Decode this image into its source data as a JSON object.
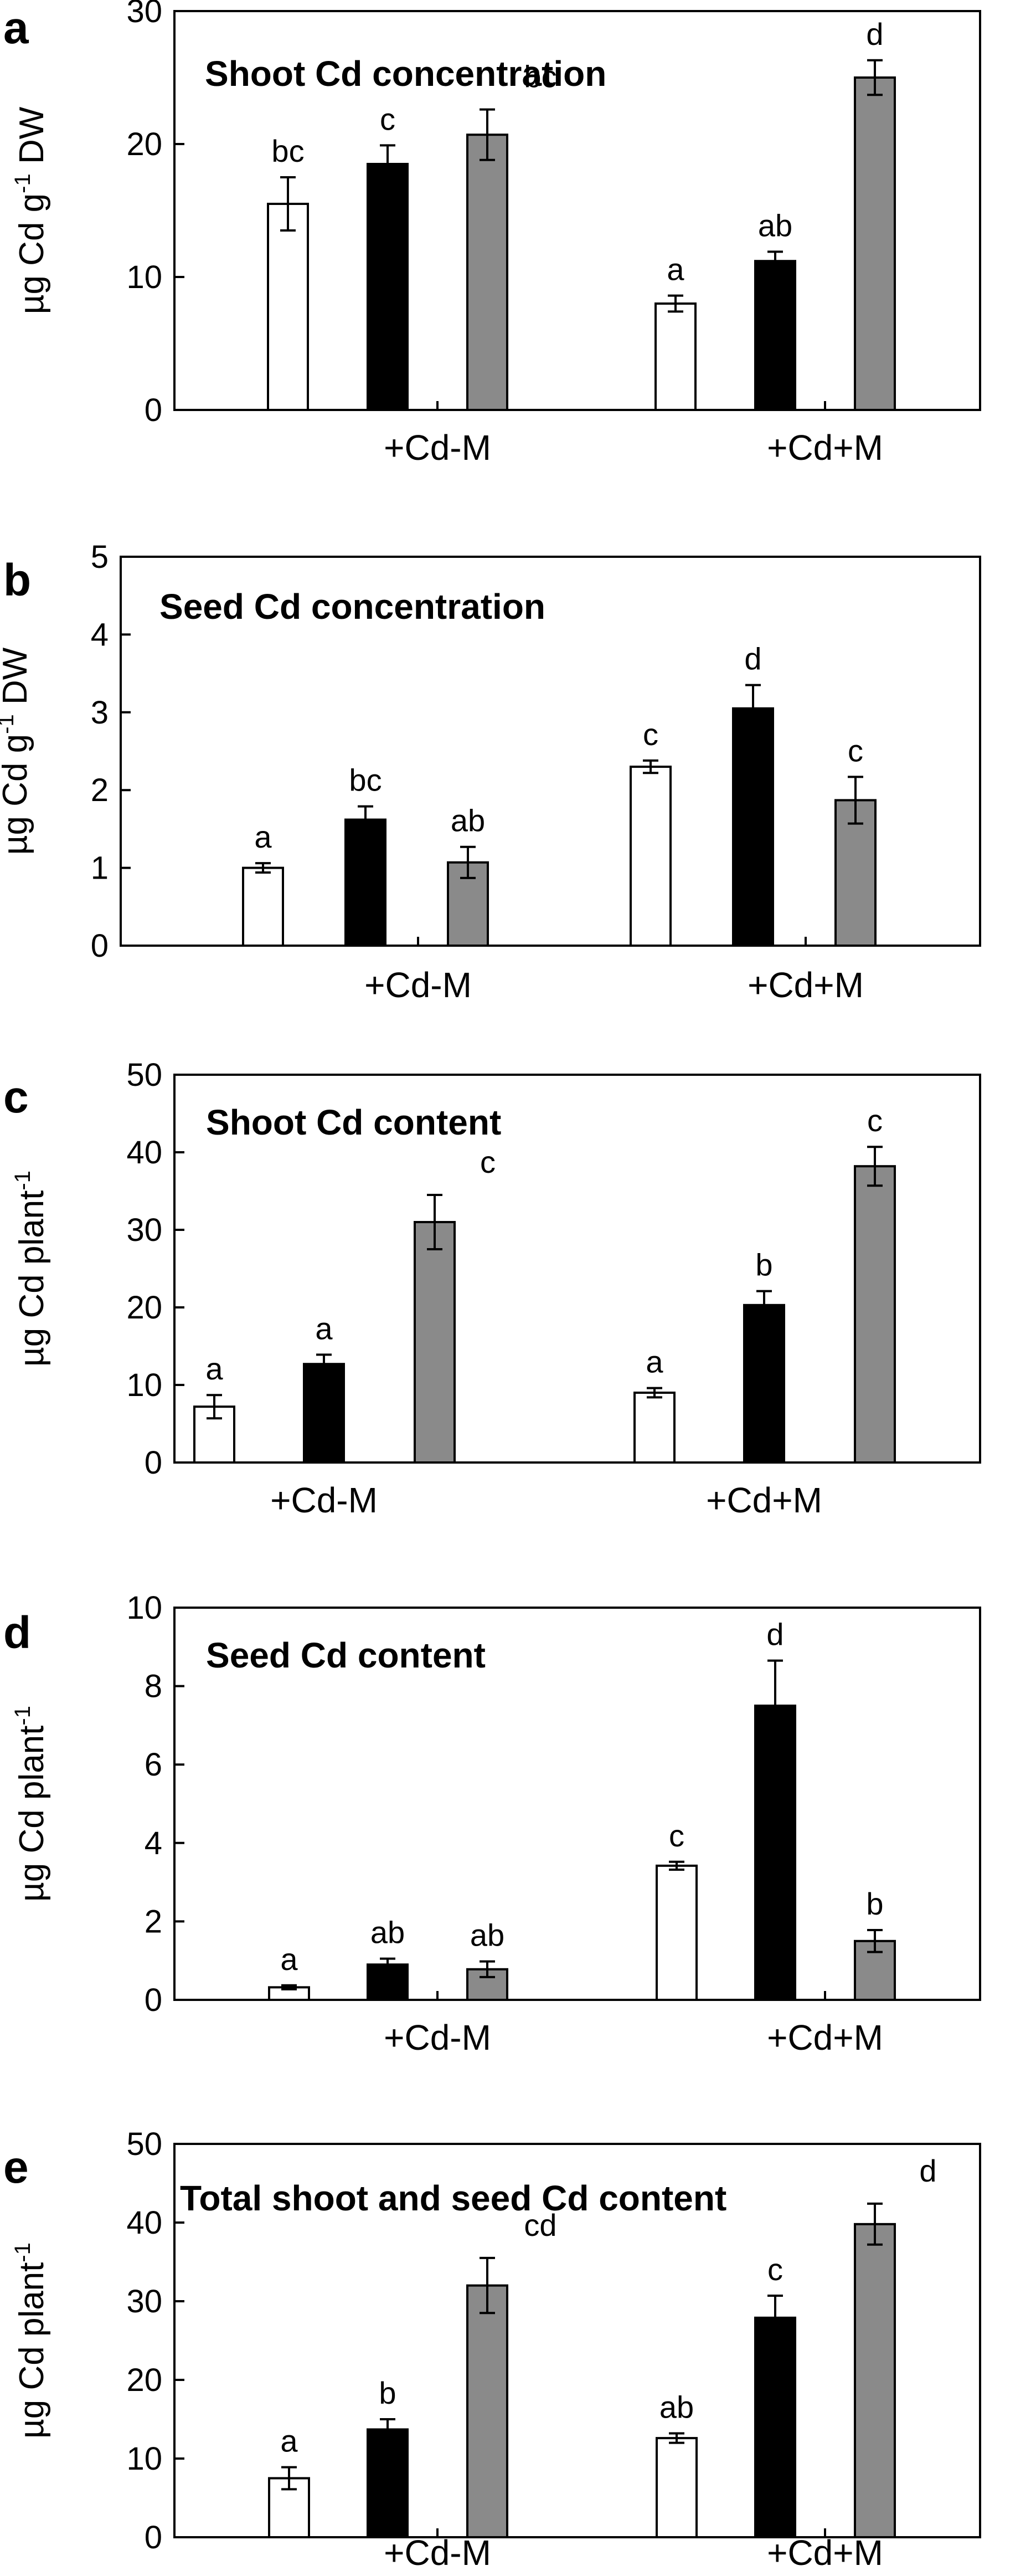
{
  "figure": {
    "series_colors": [
      "#ffffff",
      "#000000",
      "#8a8a8a"
    ],
    "bar_stroke": "#000000",
    "axis_color": "#000000"
  },
  "chart_data": [
    {
      "id": "a",
      "type": "bar",
      "panel_letter": "a",
      "title": "Shoot Cd concentration",
      "ylabel_parts": [
        "µg Cd g",
        "-1",
        " DW"
      ],
      "ylim": [
        0,
        30
      ],
      "yticks": [
        0,
        10,
        20,
        30
      ],
      "categories": [
        "+Cd-M",
        "+Cd+M"
      ],
      "series": [
        {
          "values": [
            15.5,
            8.0
          ],
          "errors": [
            2.0,
            0.6
          ],
          "letters": [
            "bc",
            "a"
          ]
        },
        {
          "values": [
            18.5,
            11.2
          ],
          "errors": [
            1.4,
            0.7
          ],
          "letters": [
            "c",
            "ab"
          ]
        },
        {
          "values": [
            20.7,
            25.0
          ],
          "errors": [
            1.9,
            1.3
          ],
          "letters": [
            "bc",
            "d"
          ]
        }
      ]
    },
    {
      "id": "b",
      "type": "bar",
      "panel_letter": "b",
      "title": "Seed Cd concentration",
      "ylabel_parts": [
        "µg Cd g",
        "-1",
        " DW"
      ],
      "ylim": [
        0,
        5
      ],
      "yticks": [
        0,
        1,
        2,
        3,
        4,
        5
      ],
      "categories": [
        "+Cd-M",
        "+Cd+M"
      ],
      "series": [
        {
          "values": [
            1.0,
            2.3
          ],
          "errors": [
            0.06,
            0.08
          ],
          "letters": [
            "a",
            "c"
          ]
        },
        {
          "values": [
            1.62,
            3.05
          ],
          "errors": [
            0.17,
            0.3
          ],
          "letters": [
            "bc",
            "d"
          ]
        },
        {
          "values": [
            1.07,
            1.87
          ],
          "errors": [
            0.2,
            0.3
          ],
          "letters": [
            "ab",
            "c"
          ]
        }
      ]
    },
    {
      "id": "c",
      "type": "bar",
      "panel_letter": "c",
      "title": "Shoot Cd content",
      "ylabel_parts": [
        "µg Cd plant",
        "-1",
        ""
      ],
      "ylim": [
        0,
        50
      ],
      "yticks": [
        0,
        10,
        20,
        30,
        40,
        50
      ],
      "categories": [
        "+Cd-M",
        "+Cd+M"
      ],
      "series": [
        {
          "values": [
            7.2,
            9.0
          ],
          "errors": [
            1.5,
            0.6
          ],
          "letters": [
            "a",
            "a"
          ]
        },
        {
          "values": [
            12.7,
            20.3
          ],
          "errors": [
            1.2,
            1.8
          ],
          "letters": [
            "a",
            "b"
          ]
        },
        {
          "values": [
            31.0,
            38.2
          ],
          "errors": [
            3.5,
            2.5
          ],
          "letters": [
            "c",
            "c"
          ]
        }
      ]
    },
    {
      "id": "d",
      "type": "bar",
      "panel_letter": "d",
      "title": "Seed Cd content",
      "ylabel_parts": [
        "µg Cd plant",
        "-1",
        ""
      ],
      "ylim": [
        0,
        10
      ],
      "yticks": [
        0,
        2,
        4,
        6,
        8,
        10
      ],
      "categories": [
        "+Cd-M",
        "+Cd+M"
      ],
      "series": [
        {
          "values": [
            0.32,
            3.42
          ],
          "errors": [
            0.05,
            0.1
          ],
          "letters": [
            "a",
            "c"
          ]
        },
        {
          "values": [
            0.9,
            7.5
          ],
          "errors": [
            0.15,
            1.15
          ],
          "letters": [
            "ab",
            "d"
          ]
        },
        {
          "values": [
            0.78,
            1.5
          ],
          "errors": [
            0.2,
            0.28
          ],
          "letters": [
            "ab",
            "b"
          ]
        }
      ]
    },
    {
      "id": "e",
      "type": "bar",
      "panel_letter": "e",
      "title": "Total shoot and seed Cd content",
      "ylabel_parts": [
        "µg Cd plant",
        "-1",
        ""
      ],
      "ylim": [
        0,
        50
      ],
      "yticks": [
        0,
        10,
        20,
        30,
        40,
        50
      ],
      "categories": [
        "+Cd-M",
        "+Cd+M"
      ],
      "series": [
        {
          "values": [
            7.5,
            12.6
          ],
          "errors": [
            1.4,
            0.6
          ],
          "letters": [
            "a",
            "ab"
          ]
        },
        {
          "values": [
            13.7,
            27.9
          ],
          "errors": [
            1.3,
            2.8
          ],
          "letters": [
            "b",
            "c"
          ]
        },
        {
          "values": [
            32.0,
            39.8
          ],
          "errors": [
            3.5,
            2.6
          ],
          "letters": [
            "cd",
            "d"
          ]
        }
      ]
    }
  ]
}
